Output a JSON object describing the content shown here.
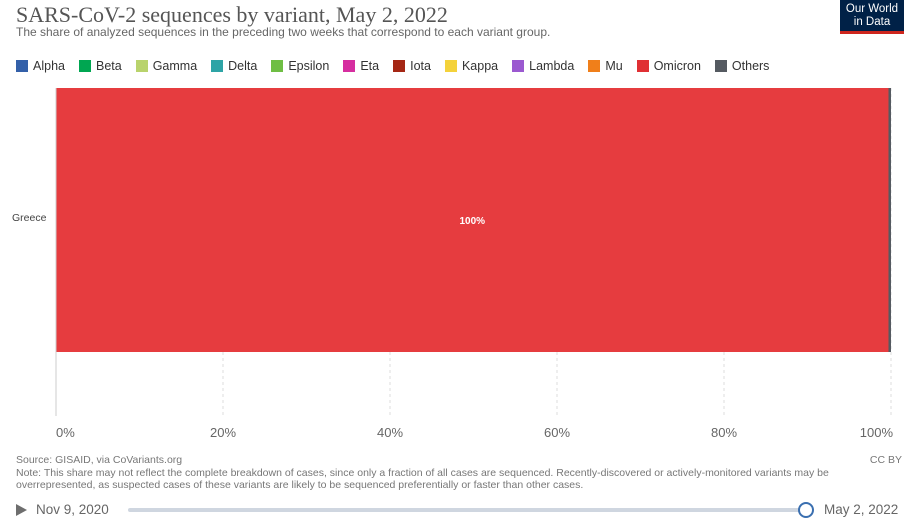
{
  "header": {
    "title": "SARS-CoV-2 sequences by variant, May 2, 2022",
    "subtitle": "The share of analyzed sequences in the preceding two weeks that correspond to each variant group."
  },
  "logo": {
    "line1": "Our World",
    "line2": "in Data"
  },
  "legend": [
    {
      "label": "Alpha",
      "color": "#3360a9"
    },
    {
      "label": "Beta",
      "color": "#00a651"
    },
    {
      "label": "Gamma",
      "color": "#b9d36c"
    },
    {
      "label": "Delta",
      "color": "#2ea4a6"
    },
    {
      "label": "Epsilon",
      "color": "#6fbe44"
    },
    {
      "label": "Eta",
      "color": "#d62ea0"
    },
    {
      "label": "Iota",
      "color": "#a52714"
    },
    {
      "label": "Kappa",
      "color": "#f4d23b"
    },
    {
      "label": "Lambda",
      "color": "#9b59d0"
    },
    {
      "label": "Mu",
      "color": "#f07f1a"
    },
    {
      "label": "Omicron",
      "color": "#e03034"
    },
    {
      "label": "Others",
      "color": "#555a61"
    }
  ],
  "chart_data": {
    "type": "bar",
    "orientation": "horizontal",
    "stacked": true,
    "title": "SARS-CoV-2 sequences by variant, May 2, 2022",
    "categories": [
      "Greece"
    ],
    "series": [
      {
        "name": "Omicron",
        "values": [
          99.7
        ],
        "color": "#e63c3f",
        "label": "100%"
      },
      {
        "name": "Others",
        "values": [
          0.3
        ],
        "color": "#555a61"
      }
    ],
    "xlim": [
      0,
      100
    ],
    "ticks": [
      0,
      20,
      40,
      60,
      80,
      100
    ],
    "tick_labels": [
      "0%",
      "20%",
      "40%",
      "60%",
      "80%",
      "100%"
    ],
    "xlabel": "",
    "ylabel": "",
    "grid": true
  },
  "footer": {
    "source": "Source: GISAID, via CoVariants.org",
    "note": "Note: This share may not reflect the complete breakdown of cases, since only a fraction of all cases are sequenced. Recently-discovered or actively-monitored variants may be overrepresented, as suspected cases of these variants are likely to be sequenced preferentially or faster than other cases.",
    "license": "CC BY"
  },
  "timeline": {
    "start_date": "Nov 9, 2020",
    "end_date": "May 2, 2022",
    "position": 1.0
  }
}
